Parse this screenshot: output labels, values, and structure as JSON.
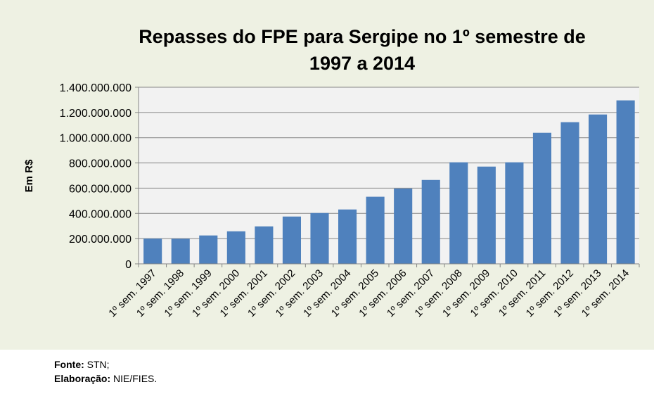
{
  "chart_data": {
    "type": "bar",
    "title": "Repasses do FPE para Sergipe no 1º semestre de 1997 a 2014",
    "title_lines": [
      "Repasses do FPE para Sergipe no 1º semestre de",
      "1997 a 2014"
    ],
    "xlabel": "",
    "ylabel": "Em R$",
    "ylim": [
      0,
      1400000000
    ],
    "yticks": [
      0,
      200000000,
      400000000,
      600000000,
      800000000,
      1000000000,
      1200000000,
      1400000000
    ],
    "ytick_labels": [
      "0",
      "200.000.000",
      "400.000.000",
      "600.000.000",
      "800.000.000",
      "1.000.000.000",
      "1.200.000.000",
      "1.400.000.000"
    ],
    "categories": [
      "1º sem. 1997",
      "1º sem. 1998",
      "1º sem. 1999",
      "1º sem. 2000",
      "1º sem. 2001",
      "1º sem. 2002",
      "1º sem. 2003",
      "1º sem. 2004",
      "1º sem. 2005",
      "1º sem. 2006",
      "1º sem. 2007",
      "1º sem. 2008",
      "1º sem. 2009",
      "1º sem. 2010",
      "1º sem. 2011",
      "1º sem. 2012",
      "1º sem. 2013",
      "1º sem. 2014"
    ],
    "values": [
      200000000,
      199000000,
      225000000,
      258000000,
      297000000,
      375000000,
      403000000,
      431000000,
      532000000,
      597000000,
      665000000,
      805000000,
      771000000,
      805000000,
      1039000000,
      1123000000,
      1184000000,
      1296000000
    ],
    "grid": true,
    "legend": "none",
    "colors": {
      "bar": "#4f81bd",
      "plot_bg": "#f2f2f2",
      "chart_bg": "#eef1e3",
      "grid": "#868686"
    }
  },
  "source": {
    "fonte_label": "Fonte:",
    "fonte_value": " STN;",
    "elaboracao_label": "Elaboração:",
    "elaboracao_value": " NIE/FIES."
  }
}
